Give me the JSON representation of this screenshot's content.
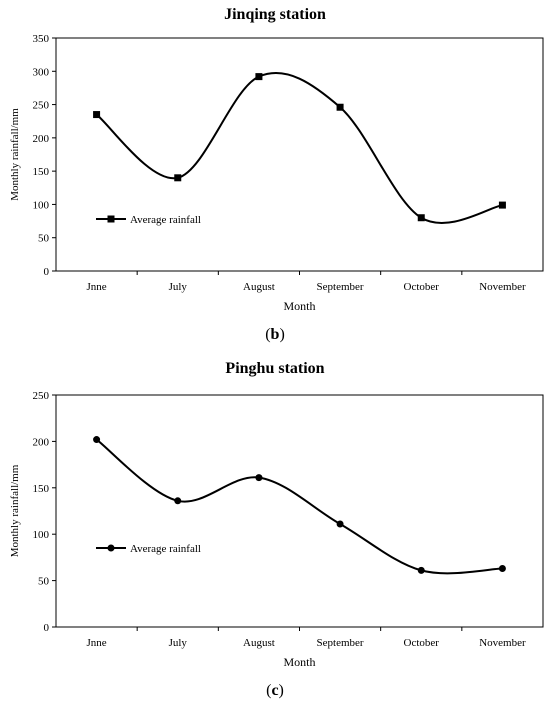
{
  "chart_data": [
    {
      "type": "line",
      "title": "Jinqing station",
      "xlabel": "Month",
      "ylabel": "Monthly rainfall/mm",
      "categories": [
        "Jnne",
        "July",
        "August",
        "September",
        "October",
        "November"
      ],
      "ylim": [
        0,
        350
      ],
      "yticks": [
        0,
        50,
        100,
        150,
        200,
        250,
        300,
        350
      ],
      "series": [
        {
          "name": "Average rainfall",
          "marker": "square",
          "values": [
            235,
            140,
            292,
            246,
            80,
            99
          ]
        }
      ],
      "legend_position": "left-middle",
      "grid": false,
      "smooth": true,
      "caption": "b"
    },
    {
      "type": "line",
      "title": "Pinghu station",
      "xlabel": "Month",
      "ylabel": "Monthly rainfall/mm",
      "categories": [
        "Jnne",
        "July",
        "August",
        "September",
        "October",
        "November"
      ],
      "ylim": [
        0,
        250
      ],
      "yticks": [
        0,
        50,
        100,
        150,
        200,
        250
      ],
      "series": [
        {
          "name": "Average rainfall",
          "marker": "circle",
          "values": [
            202,
            136,
            161,
            111,
            61,
            63
          ]
        }
      ],
      "legend_position": "left-middle",
      "grid": false,
      "smooth": true,
      "caption": "c"
    }
  ]
}
